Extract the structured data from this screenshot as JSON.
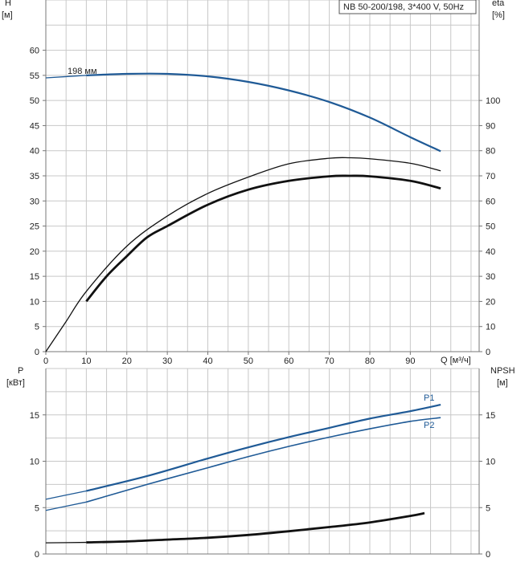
{
  "title_box": "NB 50-200/198, 3*400 V, 50Hz",
  "colors": {
    "blue": "#1f5a96",
    "black": "#111111",
    "grid": "#c8c8c8"
  },
  "chart_data": [
    {
      "type": "line",
      "panel": "head-efficiency",
      "left_axis": {
        "label_line1": "H",
        "label_line2": "[м]",
        "ticks": [
          0,
          5,
          10,
          15,
          20,
          25,
          30,
          35,
          40,
          45,
          50,
          55,
          60
        ],
        "range": [
          0,
          70
        ]
      },
      "right_axis": {
        "label_line1": "eta",
        "label_line2": "[%]",
        "ticks": [
          0,
          10,
          20,
          30,
          40,
          50,
          60,
          70,
          80,
          90,
          100
        ],
        "range": [
          0,
          140
        ]
      },
      "x_axis": {
        "label": "Q [м³/ч]",
        "ticks": [
          0,
          10,
          20,
          30,
          40,
          50,
          60,
          70,
          80,
          90
        ],
        "range": [
          0,
          107
        ]
      },
      "annotation": "198 мм",
      "series": [
        {
          "id": "head",
          "color": "blue",
          "axis": "left",
          "style": "med",
          "x": [
            0,
            10,
            20,
            30,
            40,
            50,
            60,
            70,
            80,
            90,
            97.5
          ],
          "y": [
            54.5,
            55.0,
            55.3,
            55.3,
            54.8,
            53.7,
            52.0,
            49.7,
            46.6,
            42.7,
            39.9
          ]
        },
        {
          "id": "eta_thick",
          "color": "black",
          "axis": "right",
          "style": "thick",
          "x": [
            10,
            15,
            20,
            25,
            30,
            40,
            50,
            60,
            70,
            75,
            80,
            90,
            97.5
          ],
          "y": [
            20,
            30,
            38,
            45.5,
            50,
            58.5,
            64.5,
            68,
            69.8,
            70,
            69.8,
            68,
            65
          ]
        },
        {
          "id": "eta_thin",
          "color": "black",
          "axis": "right",
          "style": "thin",
          "x": [
            0,
            5,
            10,
            20,
            30,
            40,
            50,
            60,
            70,
            75,
            80,
            90,
            97.5
          ],
          "y": [
            0,
            12,
            24,
            42,
            54,
            63,
            69.5,
            74.8,
            77,
            77.2,
            76.8,
            75,
            72
          ]
        }
      ]
    },
    {
      "type": "line",
      "panel": "power-npsh",
      "left_axis": {
        "label_line1": "P",
        "label_line2": "[кВт]",
        "ticks": [
          0,
          5,
          10,
          15
        ],
        "range": [
          0,
          20
        ]
      },
      "right_axis": {
        "label_line1": "NPSH",
        "label_line2": "[м]",
        "ticks": [
          0,
          5,
          10,
          15
        ],
        "range": [
          0,
          20
        ]
      },
      "x_axis": {
        "range": [
          0,
          107
        ]
      },
      "series": [
        {
          "id": "p1",
          "name": "P1",
          "color": "blue",
          "style": "med",
          "x": [
            0,
            10,
            25,
            40,
            50,
            60,
            70,
            80,
            90,
            97.5
          ],
          "y": [
            5.9,
            6.8,
            8.4,
            10.3,
            11.5,
            12.6,
            13.6,
            14.6,
            15.4,
            16.1
          ]
        },
        {
          "id": "p2",
          "name": "P2",
          "color": "blue",
          "style": "sub",
          "x": [
            0,
            10,
            25,
            40,
            50,
            60,
            70,
            80,
            90,
            97.5
          ],
          "y": [
            4.7,
            5.6,
            7.5,
            9.3,
            10.5,
            11.6,
            12.6,
            13.5,
            14.3,
            14.7
          ]
        },
        {
          "id": "npsh",
          "color": "black",
          "style": "thick",
          "x": [
            0,
            10,
            20,
            30,
            40,
            50,
            60,
            70,
            80,
            90,
            93.5
          ],
          "y": [
            1.2,
            1.25,
            1.35,
            1.55,
            1.75,
            2.05,
            2.45,
            2.9,
            3.4,
            4.1,
            4.4
          ]
        }
      ]
    }
  ]
}
